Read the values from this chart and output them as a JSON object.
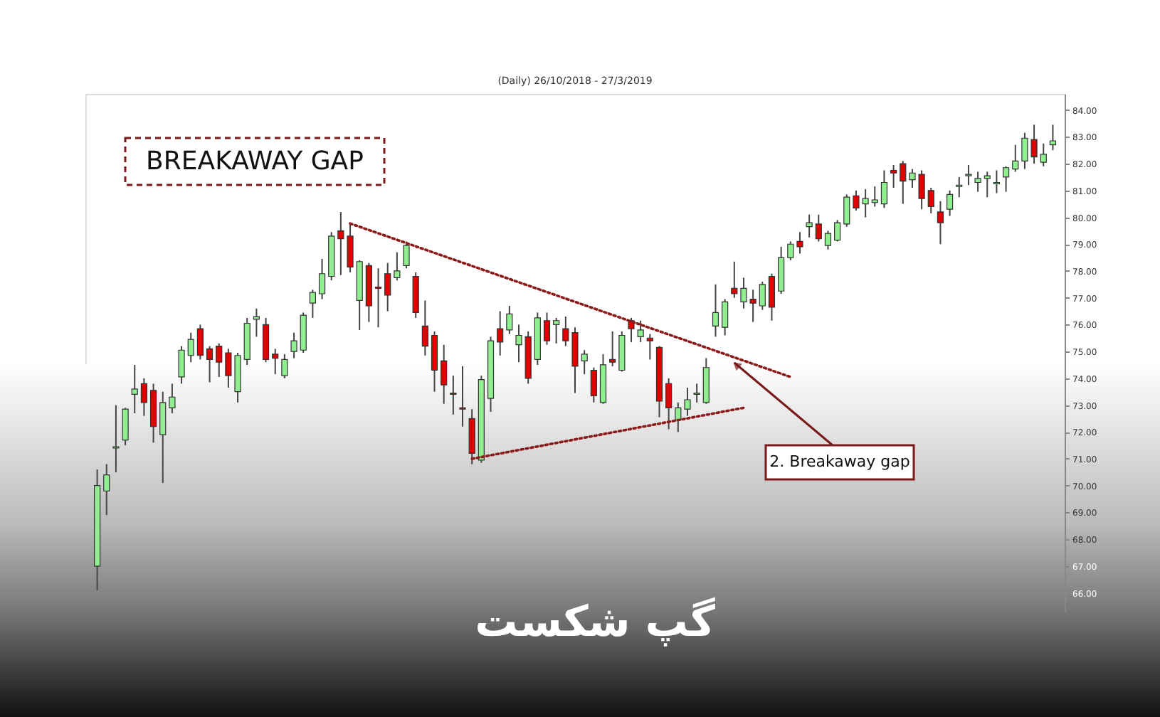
{
  "chart_data": {
    "type": "candlestick",
    "title": "(Daily) 26/10/2018 - 27/3/2019",
    "annotations": [
      "BREAKAWAY GAP",
      "2. Breakaway gap",
      "گپ شکست"
    ],
    "categories": [
      null,
      null,
      null,
      null,
      null,
      null,
      null,
      null,
      null,
      null,
      null,
      null,
      null,
      null,
      null,
      null,
      null,
      null,
      null,
      null,
      null,
      null,
      null,
      null,
      null,
      null,
      null,
      null,
      null,
      null,
      null,
      null,
      null,
      null,
      null,
      null,
      null,
      null,
      null,
      null,
      null,
      null,
      null,
      null,
      null,
      null,
      null,
      null,
      null,
      null,
      null,
      null,
      null,
      null,
      null,
      null,
      null,
      null,
      null,
      null,
      null,
      null,
      null,
      null,
      null,
      null,
      null,
      null,
      null,
      null,
      null,
      null,
      null,
      null,
      null,
      null,
      null,
      null,
      null,
      null,
      null,
      null,
      null,
      null,
      null,
      null,
      null,
      null,
      null,
      null,
      null,
      null,
      null,
      null,
      null,
      null,
      null,
      null,
      null,
      null,
      null,
      null,
      null
    ],
    "ohlc": [
      [
        67.0,
        70.6,
        66.1,
        70.0
      ],
      [
        69.8,
        70.8,
        68.9,
        70.4
      ],
      [
        71.4,
        73.0,
        70.5,
        71.45
      ],
      [
        71.7,
        72.9,
        71.5,
        72.85
      ],
      [
        73.4,
        74.5,
        72.7,
        73.6
      ],
      [
        73.8,
        74.0,
        72.6,
        73.1
      ],
      [
        73.55,
        73.8,
        71.6,
        72.2
      ],
      [
        71.9,
        73.5,
        70.1,
        73.1
      ],
      [
        72.9,
        73.8,
        72.7,
        73.3
      ],
      [
        74.05,
        75.2,
        73.8,
        75.05
      ],
      [
        74.85,
        75.7,
        74.6,
        75.45
      ],
      [
        75.85,
        76.0,
        74.7,
        74.85
      ],
      [
        75.1,
        75.2,
        73.85,
        74.7
      ],
      [
        75.2,
        75.3,
        74.05,
        74.6
      ],
      [
        74.95,
        75.1,
        73.65,
        74.1
      ],
      [
        73.5,
        74.95,
        73.1,
        74.85
      ],
      [
        74.7,
        76.25,
        74.5,
        76.05
      ],
      [
        76.2,
        76.6,
        75.55,
        76.3
      ],
      [
        76.0,
        76.25,
        74.6,
        74.7
      ],
      [
        74.9,
        75.1,
        74.15,
        74.75
      ],
      [
        74.1,
        74.9,
        74.0,
        74.7
      ],
      [
        75.0,
        75.7,
        74.75,
        75.4
      ],
      [
        75.05,
        76.45,
        74.95,
        76.35
      ],
      [
        76.8,
        77.3,
        76.25,
        77.2
      ],
      [
        77.15,
        78.45,
        76.95,
        77.9
      ],
      [
        77.8,
        79.45,
        77.65,
        79.3
      ],
      [
        79.5,
        80.2,
        77.85,
        79.2
      ],
      [
        79.3,
        79.8,
        77.95,
        78.15
      ],
      [
        76.9,
        78.4,
        75.8,
        78.35
      ],
      [
        78.2,
        78.3,
        76.1,
        76.7
      ],
      [
        77.4,
        78.1,
        75.9,
        77.35
      ],
      [
        77.9,
        78.3,
        76.5,
        77.1
      ],
      [
        77.75,
        78.7,
        77.65,
        78.0
      ],
      [
        78.2,
        79.1,
        78.1,
        78.95
      ],
      [
        77.8,
        77.95,
        76.25,
        76.45
      ],
      [
        75.95,
        76.9,
        74.85,
        75.2
      ],
      [
        75.6,
        75.75,
        73.5,
        74.3
      ],
      [
        74.65,
        75.25,
        73.05,
        73.75
      ],
      [
        73.45,
        74.1,
        72.65,
        73.4
      ],
      [
        72.9,
        74.45,
        72.2,
        72.85
      ],
      [
        72.5,
        72.85,
        70.8,
        71.2
      ],
      [
        70.95,
        74.1,
        70.85,
        73.95
      ],
      [
        73.25,
        75.55,
        72.75,
        75.4
      ],
      [
        75.85,
        76.5,
        74.85,
        75.35
      ],
      [
        75.8,
        76.7,
        75.65,
        76.4
      ],
      [
        75.25,
        76.0,
        74.6,
        75.6
      ],
      [
        75.55,
        75.75,
        73.8,
        74.0
      ],
      [
        74.7,
        76.45,
        74.5,
        76.25
      ],
      [
        76.15,
        76.45,
        75.25,
        75.4
      ],
      [
        76.0,
        76.25,
        75.3,
        76.15
      ],
      [
        75.85,
        76.3,
        75.2,
        75.4
      ],
      [
        75.7,
        75.9,
        73.45,
        74.45
      ],
      [
        74.65,
        75.05,
        74.15,
        74.9
      ],
      [
        74.3,
        74.4,
        73.1,
        73.35
      ],
      [
        73.1,
        74.9,
        73.05,
        74.5
      ],
      [
        74.7,
        75.75,
        74.45,
        74.6
      ],
      [
        74.3,
        75.75,
        74.25,
        75.6
      ],
      [
        76.15,
        76.25,
        75.35,
        75.85
      ],
      [
        75.55,
        76.15,
        75.35,
        75.8
      ],
      [
        75.5,
        75.65,
        74.7,
        75.4
      ],
      [
        75.15,
        75.2,
        72.55,
        73.15
      ],
      [
        73.8,
        74.0,
        72.1,
        72.9
      ],
      [
        72.45,
        73.1,
        72.0,
        72.9
      ],
      [
        72.85,
        73.65,
        72.6,
        73.2
      ],
      [
        73.4,
        73.8,
        73.1,
        73.45
      ],
      [
        73.1,
        74.75,
        73.05,
        74.4
      ],
      [
        75.95,
        77.5,
        75.55,
        76.45
      ],
      [
        75.9,
        76.95,
        75.6,
        76.85
      ],
      [
        77.35,
        78.35,
        77.0,
        77.15
      ],
      [
        76.85,
        77.75,
        76.6,
        77.35
      ],
      [
        76.95,
        77.3,
        76.1,
        76.8
      ],
      [
        76.7,
        77.6,
        76.55,
        77.5
      ],
      [
        77.8,
        77.9,
        76.15,
        76.65
      ],
      [
        77.25,
        78.9,
        77.15,
        78.5
      ],
      [
        78.5,
        79.1,
        78.4,
        79.0
      ],
      [
        79.1,
        79.45,
        78.65,
        78.9
      ],
      [
        79.65,
        80.1,
        79.25,
        79.8
      ],
      [
        79.75,
        80.1,
        79.1,
        79.2
      ],
      [
        78.95,
        79.5,
        78.8,
        79.4
      ],
      [
        79.15,
        79.9,
        79.1,
        79.8
      ],
      [
        79.75,
        80.85,
        79.65,
        80.75
      ],
      [
        80.8,
        81.0,
        80.25,
        80.35
      ],
      [
        80.5,
        81.05,
        80.0,
        80.7
      ],
      [
        80.55,
        81.15,
        80.4,
        80.65
      ],
      [
        80.5,
        81.75,
        80.35,
        81.3
      ],
      [
        81.75,
        81.95,
        81.1,
        81.65
      ],
      [
        82.0,
        82.1,
        80.5,
        81.35
      ],
      [
        81.4,
        81.8,
        81.1,
        81.65
      ],
      [
        81.6,
        81.75,
        80.3,
        80.7
      ],
      [
        81.0,
        81.1,
        80.15,
        80.4
      ],
      [
        80.2,
        80.6,
        79.0,
        79.8
      ],
      [
        80.3,
        81.0,
        80.05,
        80.85
      ],
      [
        81.15,
        81.5,
        80.75,
        81.2
      ],
      [
        81.55,
        81.95,
        81.2,
        81.6
      ],
      [
        81.3,
        81.7,
        80.95,
        81.45
      ],
      [
        81.45,
        81.7,
        80.75,
        81.55
      ],
      [
        81.25,
        81.75,
        80.9,
        81.3
      ],
      [
        81.5,
        81.9,
        80.95,
        81.85
      ],
      [
        81.8,
        82.7,
        81.7,
        82.1
      ],
      [
        82.1,
        83.15,
        81.8,
        82.95
      ],
      [
        82.9,
        83.45,
        82.0,
        82.25
      ],
      [
        82.05,
        82.75,
        81.9,
        82.35
      ],
      [
        82.7,
        83.45,
        82.5,
        82.85
      ]
    ],
    "series": [
      {
        "type": "line",
        "color": "#8b1a1a",
        "line_style": "dotted",
        "values": [
          null,
          null,
          null,
          null,
          null,
          null,
          null,
          null,
          null,
          null,
          null,
          null,
          null,
          null,
          null,
          null,
          null,
          null,
          null,
          null,
          null,
          null,
          null,
          null,
          null,
          null,
          null,
          79.77,
          null,
          null,
          null,
          null,
          null,
          null,
          null,
          null,
          null,
          null,
          null,
          null,
          null,
          null,
          null,
          null,
          null,
          null,
          null,
          null,
          null,
          null,
          null,
          null,
          null,
          null,
          null,
          null,
          null,
          null,
          null,
          null,
          null,
          null,
          null,
          null,
          null,
          null,
          null,
          null,
          null,
          null,
          null,
          null,
          null,
          null,
          74.05,
          null,
          null,
          null,
          null,
          null,
          null,
          null,
          null,
          null,
          null,
          null,
          null,
          null,
          null,
          null,
          null,
          null,
          null,
          null,
          null,
          null,
          null,
          null,
          null,
          null,
          null,
          null,
          null
        ]
      },
      {
        "type": "line",
        "color": "#8b1a1a",
        "line_style": "dotted",
        "values": [
          null,
          null,
          null,
          null,
          null,
          null,
          null,
          null,
          null,
          null,
          null,
          null,
          null,
          null,
          null,
          null,
          null,
          null,
          null,
          null,
          null,
          null,
          null,
          null,
          null,
          null,
          null,
          null,
          null,
          null,
          null,
          null,
          null,
          null,
          null,
          null,
          null,
          null,
          null,
          null,
          71.0,
          null,
          null,
          null,
          null,
          null,
          null,
          null,
          null,
          null,
          null,
          null,
          null,
          null,
          null,
          null,
          null,
          null,
          null,
          null,
          null,
          null,
          null,
          null,
          null,
          null,
          null,
          null,
          null,
          72.9,
          null,
          null,
          null,
          null,
          null,
          null,
          null,
          null,
          null,
          null,
          null,
          null,
          null,
          null,
          null,
          null,
          null,
          null,
          null,
          null,
          null,
          null,
          null,
          null,
          null,
          null,
          null,
          null,
          null,
          null,
          null,
          null,
          null
        ]
      }
    ],
    "ylim": [
      65.3,
      84.6
    ],
    "yticks": [
      {
        "value": 66,
        "label": "66.00"
      },
      {
        "value": 67,
        "label": "67.00"
      },
      {
        "value": 68,
        "label": "68.00"
      },
      {
        "value": 69,
        "label": "69.00"
      },
      {
        "value": 70,
        "label": "70.00"
      },
      {
        "value": 71,
        "label": "71.00"
      },
      {
        "value": 72,
        "label": "72.00"
      },
      {
        "value": 73,
        "label": "73.00"
      },
      {
        "value": 74,
        "label": "74.00"
      },
      {
        "value": 75,
        "label": "75.00"
      },
      {
        "value": 76,
        "label": "76.00"
      },
      {
        "value": 77,
        "label": "77.00"
      },
      {
        "value": 78,
        "label": "78.00"
      },
      {
        "value": 79,
        "label": "79.00"
      },
      {
        "value": 80,
        "label": "80.00"
      },
      {
        "value": 81,
        "label": "81.00"
      },
      {
        "value": 82,
        "label": "82.00"
      },
      {
        "value": 83,
        "label": "83.00"
      },
      {
        "value": 84,
        "label": "84.00"
      }
    ],
    "tick_labels": "y",
    "grid": false,
    "legend": false
  }
}
